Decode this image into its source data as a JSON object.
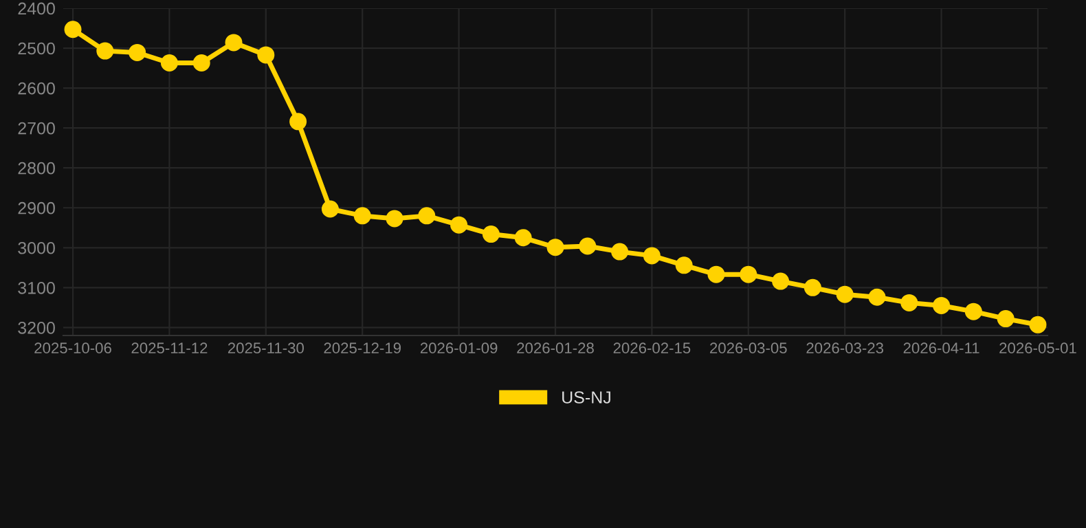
{
  "chart_data": {
    "type": "line",
    "categories": [
      "2025-10-06",
      null,
      null,
      "2025-11-12",
      null,
      null,
      "2025-11-30",
      null,
      null,
      "2025-12-19",
      null,
      null,
      "2026-01-09",
      null,
      null,
      "2026-01-28",
      null,
      null,
      "2026-02-15",
      null,
      null,
      "2026-03-05",
      null,
      null,
      "2026-03-23",
      null,
      null,
      "2026-04-11",
      null,
      null,
      "2026-05-01"
    ],
    "series": [
      {
        "name": "US-NJ",
        "color": "#ffd200",
        "values": [
          2453,
          2507,
          2511,
          2537,
          2537,
          2486,
          2517,
          2684,
          2903,
          2920,
          2927,
          2920,
          2943,
          2966,
          2975,
          2999,
          2996,
          3010,
          3020,
          3044,
          3067,
          3067,
          3084,
          3100,
          3117,
          3124,
          3138,
          3145,
          3160,
          3178,
          3193
        ]
      }
    ],
    "ylim": [
      3220,
      2400
    ],
    "yticks": [
      2400,
      2500,
      2600,
      2700,
      2800,
      2900,
      3000,
      3100,
      3200
    ],
    "grid": true,
    "legend": "bottom",
    "marker": "circle",
    "line_style": "solid"
  }
}
